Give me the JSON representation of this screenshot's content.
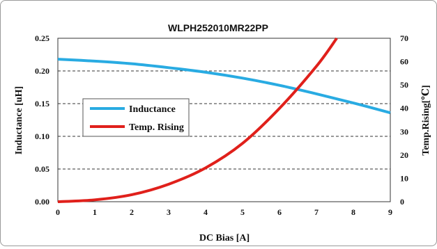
{
  "chart_data": {
    "type": "line",
    "title": "WLPH252010MR22PP",
    "xlabel": "DC Bias [A]",
    "ylabel": "Inductance [uH]",
    "y2label": "Temp.Rising[℃]",
    "xlim": [
      0,
      9
    ],
    "ylim": [
      0,
      0.25
    ],
    "y2lim": [
      0,
      70
    ],
    "x_ticks": [
      0,
      1,
      2,
      3,
      4,
      5,
      6,
      7,
      8,
      9
    ],
    "x_tick_labels": [
      "0",
      "1",
      "2",
      "3",
      "4",
      "5",
      "6",
      "7",
      "8",
      "9"
    ],
    "y_ticks": [
      0,
      0.05,
      0.1,
      0.15,
      0.2,
      0.25
    ],
    "y_tick_labels": [
      "0.00",
      "0.05",
      "0.10",
      "0.15",
      "0.20",
      "0.25"
    ],
    "y2_ticks": [
      0,
      10,
      20,
      30,
      40,
      50,
      60,
      70
    ],
    "y2_tick_labels": [
      "0",
      "10",
      "20",
      "30",
      "40",
      "50",
      "60",
      "70"
    ],
    "grid": "horizontal dashed",
    "legend_position": "left-middle",
    "series": [
      {
        "name": "Inductance",
        "axis": "left",
        "color": "#29abe2",
        "x": [
          0,
          1,
          2,
          3,
          4,
          5,
          6,
          7,
          8,
          9
        ],
        "values": [
          0.218,
          0.215,
          0.211,
          0.205,
          0.198,
          0.189,
          0.178,
          0.165,
          0.151,
          0.136
        ]
      },
      {
        "name": "Temp. Rising",
        "axis": "right",
        "color": "#e0201b",
        "x": [
          0,
          1,
          2,
          3,
          4,
          5,
          6,
          7,
          7.55
        ],
        "values": [
          0,
          0.8,
          3,
          7.5,
          14.5,
          25,
          40,
          58,
          70
        ]
      }
    ]
  }
}
